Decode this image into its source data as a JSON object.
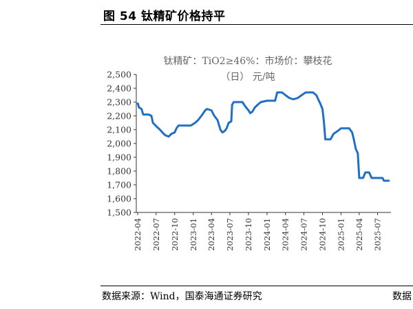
{
  "figure_title": "图 54  钛精矿价格持平",
  "source_text": "数据来源：Wind，国泰海通证券研究",
  "source_text_cut": "数据",
  "colors": {
    "series_line": "#1f6fc5",
    "axis": "#333333",
    "title_gray": "#666666"
  },
  "chart_data": {
    "type": "line",
    "title_line1": "钛精矿：TiO2≥46%：市场价：攀枝花",
    "title_line2": "（日） 元/吨",
    "ylim": [
      1500,
      2500
    ],
    "yticks": [
      "1,500",
      "1,600",
      "1,700",
      "1,800",
      "1,900",
      "2,000",
      "2,100",
      "2,200",
      "2,300",
      "2,400",
      "2,500"
    ],
    "ytick_values": [
      1500,
      1600,
      1700,
      1800,
      1900,
      2000,
      2100,
      2200,
      2300,
      2400,
      2500
    ],
    "xticks": [
      "2022-04",
      "2022-07",
      "2022-10",
      "2023-01",
      "2023-04",
      "2023-07",
      "2023-10",
      "2024-01",
      "2024-04",
      "2024-07",
      "2024-10",
      "2025-01",
      "2025-04",
      "2025-07"
    ],
    "grid": false,
    "legend": "none",
    "series": [
      {
        "values": [
          [
            "2022-04-01",
            2290
          ],
          [
            "2022-04-08",
            2260
          ],
          [
            "2022-04-20",
            2250
          ],
          [
            "2022-04-28",
            2210
          ],
          [
            "2022-05-25",
            2210
          ],
          [
            "2022-06-08",
            2200
          ],
          [
            "2022-06-15",
            2150
          ],
          [
            "2022-07-05",
            2120
          ],
          [
            "2022-07-20",
            2100
          ],
          [
            "2022-08-01",
            2080
          ],
          [
            "2022-08-15",
            2060
          ],
          [
            "2022-09-01",
            2050
          ],
          [
            "2022-09-15",
            2070
          ],
          [
            "2022-10-01",
            2080
          ],
          [
            "2022-10-10",
            2110
          ],
          [
            "2022-10-20",
            2130
          ],
          [
            "2022-12-20",
            2130
          ],
          [
            "2023-01-10",
            2150
          ],
          [
            "2023-01-25",
            2170
          ],
          [
            "2023-02-10",
            2200
          ],
          [
            "2023-03-01",
            2240
          ],
          [
            "2023-03-10",
            2250
          ],
          [
            "2023-04-01",
            2240
          ],
          [
            "2023-04-15",
            2200
          ],
          [
            "2023-05-01",
            2170
          ],
          [
            "2023-05-15",
            2100
          ],
          [
            "2023-05-25",
            2080
          ],
          [
            "2023-06-05",
            2090
          ],
          [
            "2023-06-15",
            2110
          ],
          [
            "2023-06-25",
            2150
          ],
          [
            "2023-07-08",
            2160
          ],
          [
            "2023-07-12",
            2280
          ],
          [
            "2023-07-20",
            2300
          ],
          [
            "2023-09-01",
            2300
          ],
          [
            "2023-09-10",
            2280
          ],
          [
            "2023-09-20",
            2260
          ],
          [
            "2023-10-01",
            2240
          ],
          [
            "2023-10-10",
            2220
          ],
          [
            "2023-10-20",
            2230
          ],
          [
            "2023-11-01",
            2260
          ],
          [
            "2023-11-15",
            2280
          ],
          [
            "2023-12-01",
            2300
          ],
          [
            "2024-01-01",
            2310
          ],
          [
            "2024-02-10",
            2310
          ],
          [
            "2024-02-20",
            2370
          ],
          [
            "2024-03-15",
            2370
          ],
          [
            "2024-04-01",
            2350
          ],
          [
            "2024-04-20",
            2330
          ],
          [
            "2024-05-10",
            2320
          ],
          [
            "2024-06-01",
            2330
          ],
          [
            "2024-06-20",
            2350
          ],
          [
            "2024-07-10",
            2370
          ],
          [
            "2024-08-15",
            2370
          ],
          [
            "2024-09-01",
            2350
          ],
          [
            "2024-09-10",
            2320
          ],
          [
            "2024-09-20",
            2290
          ],
          [
            "2024-10-01",
            2250
          ],
          [
            "2024-10-08",
            2160
          ],
          [
            "2024-10-15",
            2030
          ],
          [
            "2024-11-10",
            2030
          ],
          [
            "2024-11-25",
            2070
          ],
          [
            "2024-12-15",
            2090
          ],
          [
            "2025-01-01",
            2110
          ],
          [
            "2025-02-10",
            2110
          ],
          [
            "2025-02-25",
            2080
          ],
          [
            "2025-03-05",
            2030
          ],
          [
            "2025-03-15",
            1960
          ],
          [
            "2025-03-25",
            1930
          ],
          [
            "2025-04-01",
            1750
          ],
          [
            "2025-04-20",
            1750
          ],
          [
            "2025-05-01",
            1790
          ],
          [
            "2025-05-20",
            1790
          ],
          [
            "2025-06-01",
            1750
          ],
          [
            "2025-07-25",
            1750
          ],
          [
            "2025-08-01",
            1730
          ],
          [
            "2025-08-25",
            1730
          ]
        ]
      }
    ]
  }
}
